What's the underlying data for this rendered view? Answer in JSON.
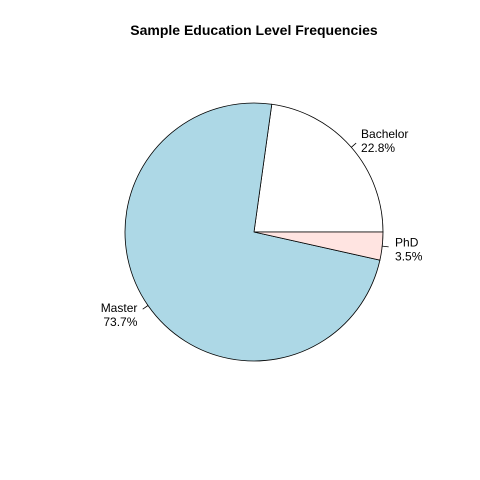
{
  "chart_data": {
    "type": "pie",
    "title": "Sample Education Level Frequencies",
    "direction": "counterclockwise",
    "start_angle_degrees": 0,
    "slices": [
      {
        "name": "Bachelor",
        "value": 22.8,
        "label": "Bachelor",
        "percent_label": "22.8%",
        "color": "#ffffff"
      },
      {
        "name": "Master",
        "value": 73.7,
        "label": "Master",
        "percent_label": "73.7%",
        "color": "#add8e6"
      },
      {
        "name": "PhD",
        "value": 3.5,
        "label": "PhD",
        "percent_label": "3.5%",
        "color": "#ffe4e1"
      }
    ]
  }
}
